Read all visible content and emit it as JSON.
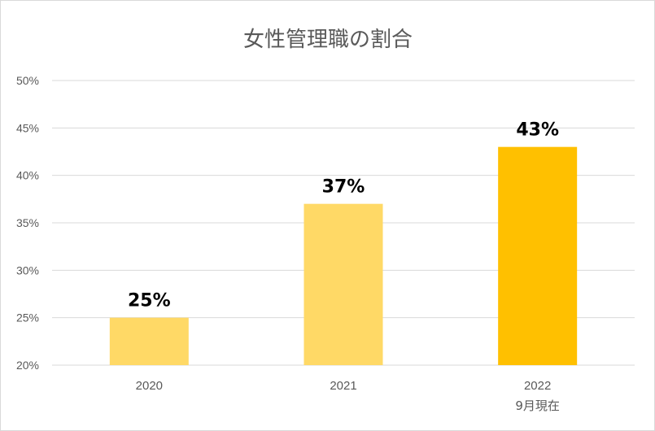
{
  "chart_data": {
    "type": "bar",
    "title": "女性管理職の割合",
    "categories": [
      "2020",
      "2021",
      "2022"
    ],
    "category_sublabels": [
      "",
      "",
      "9月現在"
    ],
    "values": [
      25,
      37,
      43
    ],
    "data_labels": [
      "25%",
      "37%",
      "43%"
    ],
    "ylim": [
      20,
      50
    ],
    "yticks": [
      20,
      25,
      30,
      35,
      40,
      45,
      50
    ],
    "ytick_labels": [
      "20%",
      "25%",
      "30%",
      "35%",
      "40%",
      "45%",
      "50%"
    ],
    "grid": true,
    "legend": "none",
    "bar_colors": [
      "#ffd966",
      "#ffd966",
      "#ffc000"
    ]
  }
}
